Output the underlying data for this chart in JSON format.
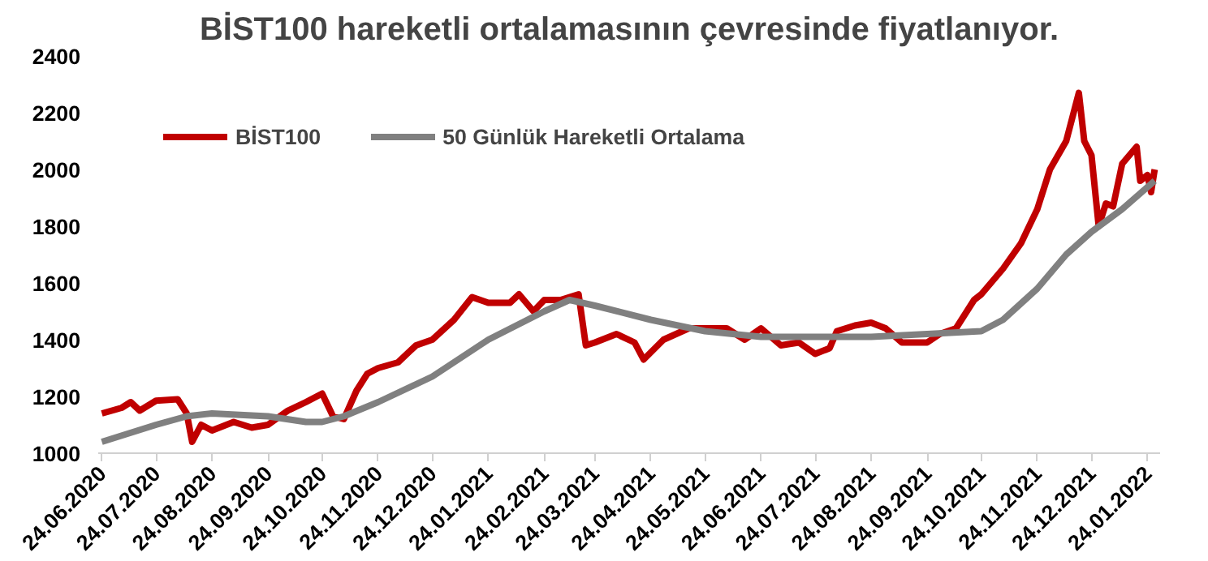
{
  "chart_data": {
    "type": "line",
    "title": "BİST100 hareketli ortalamasının çevresinde fiyatlanıyor.",
    "x": [
      "2020-06-24",
      "2020-07-05",
      "2020-07-10",
      "2020-07-15",
      "2020-07-24",
      "2020-08-05",
      "2020-08-10",
      "2020-08-13",
      "2020-08-18",
      "2020-08-24",
      "2020-09-05",
      "2020-09-15",
      "2020-09-24",
      "2020-10-05",
      "2020-10-15",
      "2020-10-24",
      "2020-10-30",
      "2020-11-05",
      "2020-11-12",
      "2020-11-18",
      "2020-11-24",
      "2020-12-05",
      "2020-12-15",
      "2020-12-24",
      "2021-01-05",
      "2021-01-15",
      "2021-01-24",
      "2021-02-05",
      "2021-02-10",
      "2021-02-18",
      "2021-02-24",
      "2021-03-05",
      "2021-03-15",
      "2021-03-19",
      "2021-03-24",
      "2021-04-05",
      "2021-04-15",
      "2021-04-20",
      "2021-05-01",
      "2021-05-15",
      "2021-05-24",
      "2021-06-05",
      "2021-06-15",
      "2021-06-24",
      "2021-07-05",
      "2021-07-15",
      "2021-07-24",
      "2021-08-01",
      "2021-08-05",
      "2021-08-15",
      "2021-08-24",
      "2021-09-01",
      "2021-09-10",
      "2021-09-24",
      "2021-10-01",
      "2021-10-10",
      "2021-10-20",
      "2021-10-24",
      "2021-11-05",
      "2021-11-15",
      "2021-11-24",
      "2021-12-01",
      "2021-12-10",
      "2021-12-17",
      "2021-12-20",
      "2021-12-24",
      "2021-12-28",
      "2022-01-01",
      "2022-01-05",
      "2022-01-10",
      "2022-01-18",
      "2022-01-20",
      "2022-01-24",
      "2022-01-26",
      "2022-01-28"
    ],
    "series": [
      {
        "name": "BİST100",
        "color": "#c00000",
        "values": [
          1140,
          1160,
          1180,
          1150,
          1185,
          1190,
          1140,
          1040,
          1100,
          1080,
          1110,
          1090,
          1100,
          1150,
          1180,
          1210,
          1130,
          1120,
          1220,
          1280,
          1300,
          1320,
          1380,
          1400,
          1470,
          1550,
          1530,
          1530,
          1560,
          1500,
          1540,
          1540,
          1560,
          1380,
          1390,
          1420,
          1390,
          1330,
          1400,
          1440,
          1440,
          1440,
          1400,
          1440,
          1380,
          1390,
          1350,
          1370,
          1430,
          1450,
          1460,
          1440,
          1390,
          1390,
          1420,
          1440,
          1540,
          1560,
          1650,
          1740,
          1860,
          2000,
          2100,
          2270,
          2100,
          2050,
          1800,
          1880,
          1870,
          2020,
          2080,
          1960,
          1980,
          1920,
          2000
        ]
      },
      {
        "name": "50 Günlük Hareketli Ortalama",
        "color": "#808080",
        "x": [
          "2020-06-24",
          "2020-07-24",
          "2020-08-10",
          "2020-08-24",
          "2020-09-24",
          "2020-10-15",
          "2020-10-24",
          "2020-11-05",
          "2020-11-24",
          "2020-12-24",
          "2021-01-24",
          "2021-02-24",
          "2021-03-10",
          "2021-03-24",
          "2021-04-24",
          "2021-05-24",
          "2021-06-24",
          "2021-07-24",
          "2021-08-24",
          "2021-09-24",
          "2021-10-24",
          "2021-11-05",
          "2021-11-24",
          "2021-12-10",
          "2021-12-24",
          "2022-01-10",
          "2022-01-28"
        ],
        "values": [
          1040,
          1100,
          1130,
          1140,
          1130,
          1110,
          1110,
          1130,
          1180,
          1270,
          1400,
          1500,
          1540,
          1520,
          1470,
          1430,
          1410,
          1410,
          1410,
          1420,
          1430,
          1470,
          1580,
          1700,
          1780,
          1860,
          1960
        ]
      }
    ],
    "xlim": [
      "2020-06-22",
      "2022-01-31"
    ],
    "xticks": [
      {
        "value": "2020-06-24",
        "label": "24.06.2020"
      },
      {
        "value": "2020-07-24",
        "label": "24.07.2020"
      },
      {
        "value": "2020-08-24",
        "label": "24.08.2020"
      },
      {
        "value": "2020-09-24",
        "label": "24.09.2020"
      },
      {
        "value": "2020-10-24",
        "label": "24.10.2020"
      },
      {
        "value": "2020-11-24",
        "label": "24.11.2020"
      },
      {
        "value": "2020-12-24",
        "label": "24.12.2020"
      },
      {
        "value": "2021-01-24",
        "label": "24.01.2021"
      },
      {
        "value": "2021-02-24",
        "label": "24.02.2021"
      },
      {
        "value": "2021-03-24",
        "label": "24.03.2021"
      },
      {
        "value": "2021-04-24",
        "label": "24.04.2021"
      },
      {
        "value": "2021-05-24",
        "label": "24.05.2021"
      },
      {
        "value": "2021-06-24",
        "label": "24.06.2021"
      },
      {
        "value": "2021-07-24",
        "label": "24.07.2021"
      },
      {
        "value": "2021-08-24",
        "label": "24.08.2021"
      },
      {
        "value": "2021-09-24",
        "label": "24.09.2021"
      },
      {
        "value": "2021-10-24",
        "label": "24.10.2021"
      },
      {
        "value": "2021-11-24",
        "label": "24.11.2021"
      },
      {
        "value": "2021-12-24",
        "label": "24.12.2021"
      },
      {
        "value": "2022-01-24",
        "label": "24.01.2022"
      }
    ],
    "ylim": [
      1000,
      2400
    ],
    "yticks": [
      1000,
      1200,
      1400,
      1600,
      1800,
      2000,
      2200,
      2400
    ],
    "grid": false,
    "legend": "top left",
    "marker": "none",
    "line_style": "solid"
  }
}
